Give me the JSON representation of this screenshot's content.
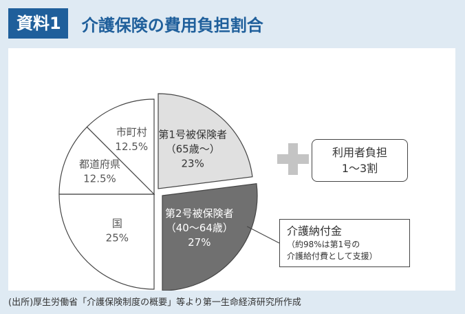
{
  "header": {
    "badge": "資料1",
    "title": "介護保険の費用負担割合"
  },
  "chart_data": {
    "type": "pie",
    "title": "介護保険の費用負担割合",
    "slices": [
      {
        "label": "第1号被保険者",
        "sublabel": "（65歳～）",
        "value_label": "23%",
        "value": 23,
        "color": "#e0e0e0",
        "text_color": "#333333"
      },
      {
        "label": "第2号被保険者",
        "sublabel": "（40～64歳）",
        "value_label": "27%",
        "value": 27,
        "color": "#707070",
        "text_color": "#ffffff"
      },
      {
        "label": "国",
        "sublabel": "",
        "value_label": "25%",
        "value": 25,
        "color": "#ffffff",
        "text_color": "#555555"
      },
      {
        "label": "都道府県",
        "sublabel": "",
        "value_label": "12.5%",
        "value": 12.5,
        "color": "#ffffff",
        "text_color": "#555555"
      },
      {
        "label": "市町村",
        "sublabel": "",
        "value_label": "12.5%",
        "value": 12.5,
        "color": "#ffffff",
        "text_color": "#555555"
      }
    ],
    "legend": "none",
    "grid": false
  },
  "burden": {
    "line1": "利用者負担",
    "line2": "1～3割"
  },
  "contribution": {
    "title": "介護納付金",
    "note_line1": "（約98%は第1号の",
    "note_line2": "介護給付費として支援）"
  },
  "source": "(出所)厚生労働省「介護保険制度の概要」等より第一生命経済研究所作成"
}
